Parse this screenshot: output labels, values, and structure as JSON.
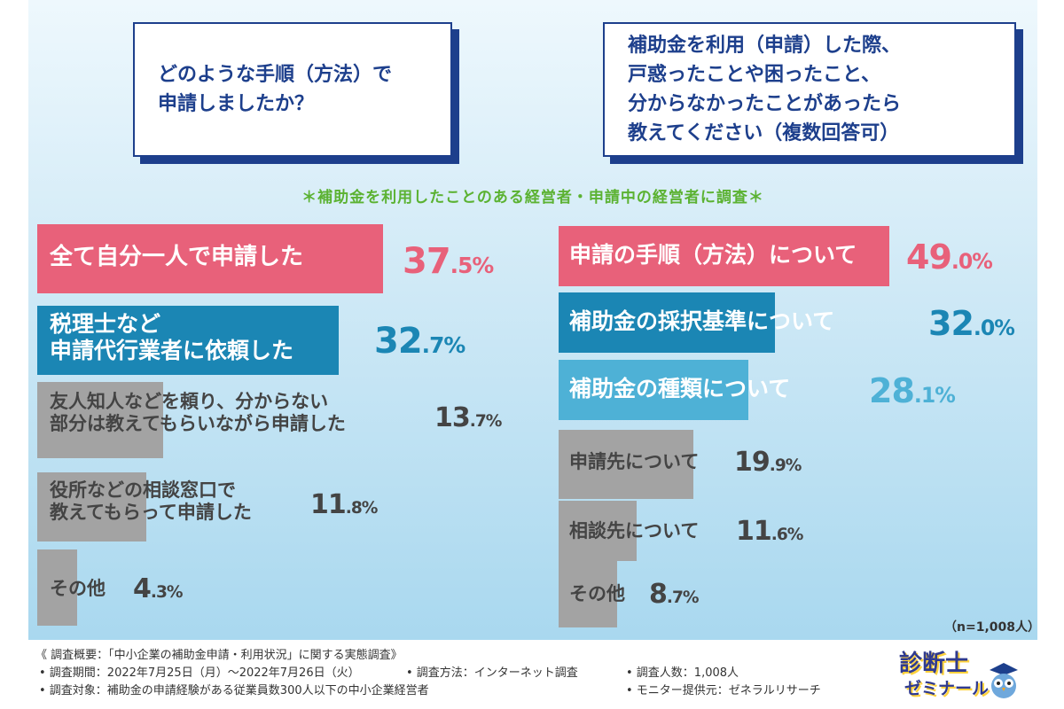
{
  "questions": {
    "q1": "どのような手順（方法）で\n申請しましたか？",
    "q2": "補助金を利用（申請）した際、\n戸惑ったことや困ったこと、\n分からなかったことがあったら\n教えてください（複数回答可）"
  },
  "note": "＊補助金を利用したことのある経営者・申請中の経営者に調査＊",
  "n_label": "（n=1,008人）",
  "colors": {
    "pink": "#e8617a",
    "blue_dark": "#1b86b4",
    "blue_light": "#4eb1d6",
    "gray": "#a3a3a3",
    "navy": "#1d3f8c"
  },
  "chart_data": [
    {
      "type": "bar",
      "orientation": "horizontal",
      "title": "どのような手順（方法）で申請しましたか？",
      "categories": [
        "全て自分一人で申請した",
        "税理士など\n申請代行業者に依頼した",
        "友人知人などを頼り、分からない\n部分は教えてもらいながら申請した",
        "役所などの相談窓口で\n教えてもらって申請した",
        "その他"
      ],
      "values": [
        37.5,
        32.7,
        13.7,
        11.8,
        4.3
      ],
      "value_labels": [
        "37.5%",
        "32.7%",
        "13.7%",
        "11.8%",
        "4.3%"
      ],
      "unit": "%"
    },
    {
      "type": "bar",
      "orientation": "horizontal",
      "title": "補助金を利用（申請）した際、戸惑ったことや困ったこと、分からなかったことがあったら教えてください（複数回答可）",
      "categories": [
        "申請の手順（方法）について",
        "補助金の採択基準について",
        "補助金の種類について",
        "申請先について",
        "相談先について",
        "その他"
      ],
      "values": [
        49.0,
        32.0,
        28.1,
        19.9,
        11.6,
        8.7
      ],
      "value_labels": [
        "49.0%",
        "32.0%",
        "28.1%",
        "19.9%",
        "11.6%",
        "8.7%"
      ],
      "unit": "%"
    }
  ],
  "footer": {
    "title": "《 調査概要：「中小企業の補助金申請・利用状況」に関する実態調査》",
    "period": "• 調査期間：2022年7月25日（月）〜2022年7月26日（火）",
    "method": "• 調査方法：インターネット調査",
    "count": "• 調査人数：1,008人",
    "target": "• 調査対象：補助金の申請経験がある従業員数300人以下の中小企業経営者",
    "provider": "• モニター提供元：ゼネラルリサーチ"
  },
  "logo": {
    "line1": "診断士",
    "line2": "ゼミナール"
  }
}
